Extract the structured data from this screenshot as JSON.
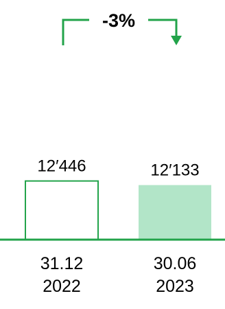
{
  "chart_data": {
    "type": "bar",
    "categories": [
      [
        "31.12",
        "2022"
      ],
      [
        "30.06",
        "2023"
      ]
    ],
    "values": [
      12446,
      12133
    ],
    "value_labels": [
      "12′446",
      "12′133"
    ],
    "change_label": "-3%",
    "colors": {
      "accent": "#22a34a",
      "bar_2022_fill": "#ffffff",
      "bar_2022_stroke": "#22a34a",
      "bar_2023_fill": "#b2e5c8"
    }
  }
}
